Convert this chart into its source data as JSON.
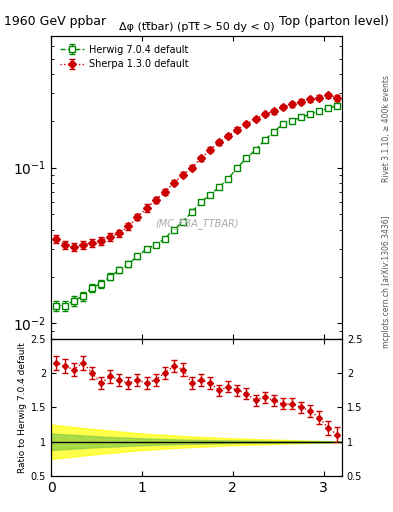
{
  "title_left": "1960 GeV ppbar",
  "title_right": "Top (parton level)",
  "plot_title": "Δφ (tt̅bar) (pTt̅ > 50 dy < 0)",
  "watermark": "(MC_FBA_TTBAR)",
  "right_label_top": "Rivet 3.1.10, ≥ 400k events",
  "right_label_bottom": "mcplots.cern.ch [arXiv:1306.3436]",
  "herwig_label": "Herwig 7.0.4 default",
  "sherpa_label": "Sherpa 1.3.0 default",
  "herwig_color": "#008800",
  "sherpa_color": "#cc0000",
  "herwig_x": [
    0.05,
    0.15,
    0.25,
    0.35,
    0.45,
    0.55,
    0.65,
    0.75,
    0.85,
    0.95,
    1.05,
    1.15,
    1.25,
    1.35,
    1.45,
    1.55,
    1.65,
    1.75,
    1.85,
    1.95,
    2.05,
    2.15,
    2.25,
    2.35,
    2.45,
    2.55,
    2.65,
    2.75,
    2.85,
    2.95,
    3.05,
    3.15
  ],
  "herwig_y": [
    0.013,
    0.013,
    0.014,
    0.015,
    0.017,
    0.018,
    0.02,
    0.022,
    0.024,
    0.027,
    0.03,
    0.032,
    0.035,
    0.04,
    0.045,
    0.052,
    0.06,
    0.067,
    0.075,
    0.085,
    0.1,
    0.115,
    0.13,
    0.15,
    0.17,
    0.19,
    0.2,
    0.21,
    0.22,
    0.23,
    0.24,
    0.25
  ],
  "herwig_yerr": [
    0.001,
    0.001,
    0.001,
    0.001,
    0.001,
    0.001,
    0.001,
    0.001,
    0.001,
    0.001,
    0.001,
    0.001,
    0.001,
    0.001,
    0.001,
    0.002,
    0.002,
    0.002,
    0.002,
    0.002,
    0.003,
    0.003,
    0.003,
    0.004,
    0.004,
    0.005,
    0.005,
    0.006,
    0.006,
    0.007,
    0.007,
    0.008
  ],
  "sherpa_x": [
    0.05,
    0.15,
    0.25,
    0.35,
    0.45,
    0.55,
    0.65,
    0.75,
    0.85,
    0.95,
    1.05,
    1.15,
    1.25,
    1.35,
    1.45,
    1.55,
    1.65,
    1.75,
    1.85,
    1.95,
    2.05,
    2.15,
    2.25,
    2.35,
    2.45,
    2.55,
    2.65,
    2.75,
    2.85,
    2.95,
    3.05,
    3.15
  ],
  "sherpa_y": [
    0.035,
    0.032,
    0.031,
    0.032,
    0.033,
    0.034,
    0.036,
    0.038,
    0.042,
    0.048,
    0.055,
    0.062,
    0.07,
    0.08,
    0.09,
    0.1,
    0.115,
    0.13,
    0.145,
    0.16,
    0.175,
    0.19,
    0.205,
    0.22,
    0.23,
    0.245,
    0.255,
    0.265,
    0.275,
    0.28,
    0.29,
    0.28
  ],
  "sherpa_yerr": [
    0.002,
    0.002,
    0.002,
    0.002,
    0.002,
    0.002,
    0.002,
    0.002,
    0.002,
    0.002,
    0.003,
    0.003,
    0.003,
    0.003,
    0.003,
    0.004,
    0.004,
    0.005,
    0.005,
    0.005,
    0.006,
    0.006,
    0.007,
    0.007,
    0.008,
    0.008,
    0.009,
    0.009,
    0.01,
    0.01,
    0.011,
    0.011
  ],
  "ratio_x": [
    0.05,
    0.15,
    0.25,
    0.35,
    0.45,
    0.55,
    0.65,
    0.75,
    0.85,
    0.95,
    1.05,
    1.15,
    1.25,
    1.35,
    1.45,
    1.55,
    1.65,
    1.75,
    1.85,
    1.95,
    2.05,
    2.15,
    2.25,
    2.35,
    2.45,
    2.55,
    2.65,
    2.75,
    2.85,
    2.95,
    3.05,
    3.15
  ],
  "ratio_y": [
    2.15,
    2.1,
    2.05,
    2.15,
    2.0,
    1.85,
    1.95,
    1.9,
    1.85,
    1.9,
    1.85,
    1.9,
    2.0,
    2.1,
    2.05,
    1.85,
    1.9,
    1.85,
    1.75,
    1.8,
    1.75,
    1.7,
    1.6,
    1.65,
    1.6,
    1.55,
    1.55,
    1.5,
    1.45,
    1.35,
    1.2,
    1.1
  ],
  "ratio_yerr": [
    0.1,
    0.1,
    0.1,
    0.1,
    0.09,
    0.09,
    0.1,
    0.09,
    0.09,
    0.09,
    0.09,
    0.09,
    0.09,
    0.09,
    0.09,
    0.09,
    0.09,
    0.09,
    0.08,
    0.08,
    0.08,
    0.08,
    0.08,
    0.08,
    0.08,
    0.08,
    0.08,
    0.08,
    0.09,
    0.09,
    0.1,
    0.11
  ],
  "band_green_x": [
    0.0,
    0.5,
    1.0,
    1.5,
    2.0,
    2.5,
    3.0,
    3.2
  ],
  "band_green_lo": [
    0.88,
    0.92,
    0.95,
    0.97,
    0.98,
    0.99,
    0.99,
    1.0
  ],
  "band_green_hi": [
    1.12,
    1.08,
    1.05,
    1.03,
    1.02,
    1.01,
    1.01,
    1.0
  ],
  "band_yellow_x": [
    0.0,
    0.5,
    1.0,
    1.5,
    2.0,
    2.5,
    3.0,
    3.2
  ],
  "band_yellow_lo": [
    0.75,
    0.82,
    0.88,
    0.92,
    0.95,
    0.97,
    0.99,
    1.0
  ],
  "band_yellow_hi": [
    1.25,
    1.18,
    1.12,
    1.08,
    1.05,
    1.03,
    1.01,
    1.0
  ],
  "xlim": [
    0,
    3.2
  ],
  "ylim_main": [
    0.008,
    0.7
  ],
  "ylim_ratio": [
    0.5,
    2.5
  ],
  "xlabel": "",
  "ylabel_main": "",
  "ylabel_ratio": "Ratio to Herwig 7.0.4 default",
  "bg_color": "#ffffff",
  "grid_color": "#aaaaaa"
}
